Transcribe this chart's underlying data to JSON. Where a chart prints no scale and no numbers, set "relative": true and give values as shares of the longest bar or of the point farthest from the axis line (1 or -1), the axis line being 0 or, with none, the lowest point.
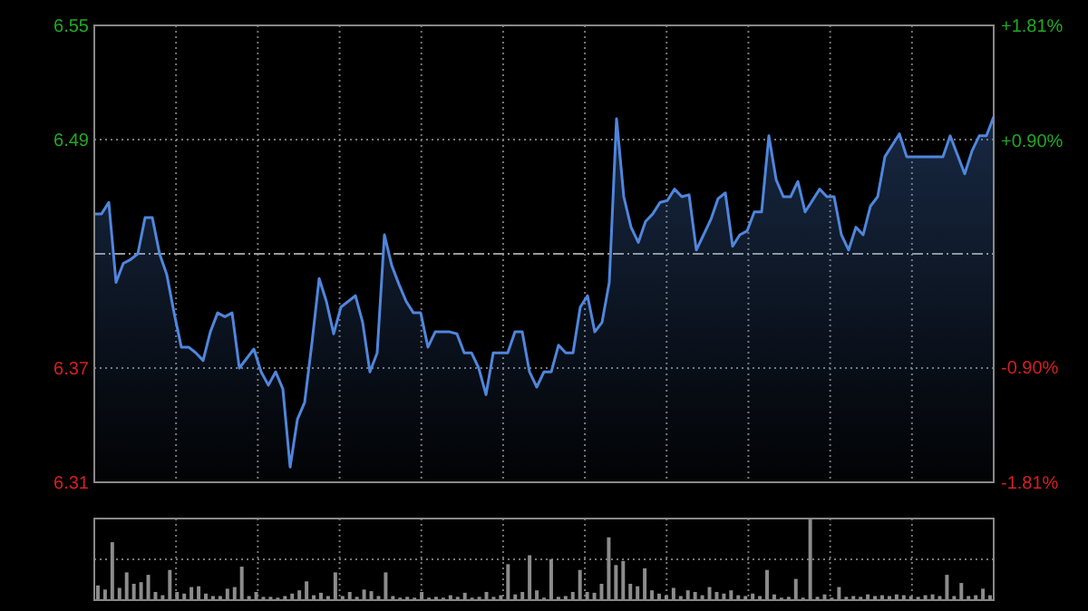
{
  "chart_data": [
    {
      "type": "area",
      "categories": [
        null,
        null,
        null,
        null,
        null,
        null,
        null,
        null,
        null,
        null,
        null,
        null,
        null,
        null,
        null,
        null,
        null,
        null,
        null,
        null,
        null,
        null,
        null,
        null,
        null,
        null,
        null,
        null,
        null,
        null,
        null,
        null,
        null,
        null,
        null,
        null,
        null,
        null,
        null,
        null,
        null,
        null,
        null,
        null,
        null,
        null,
        null,
        null,
        null,
        null,
        null,
        null,
        null,
        null,
        null,
        null,
        null,
        null,
        null,
        null,
        null,
        null,
        null,
        null,
        null,
        null,
        null,
        null,
        null,
        null,
        null,
        null,
        null,
        null,
        null,
        null,
        null,
        null,
        null,
        null,
        null,
        null,
        null,
        null,
        null,
        null,
        null,
        null,
        null,
        null,
        null,
        null,
        null,
        null,
        null,
        null,
        null,
        null,
        null,
        null,
        null,
        null,
        null,
        null,
        null,
        null,
        null,
        null,
        null,
        null,
        null,
        null,
        null,
        null,
        null,
        null,
        null,
        null,
        null,
        null,
        null,
        null,
        null,
        null,
        null
      ],
      "series": [
        {
          "color": "#4f86dc",
          "values": [
            6.451,
            6.451,
            6.457,
            6.415,
            6.425,
            6.427,
            6.43,
            6.449,
            6.449,
            6.43,
            6.419,
            6.399,
            6.381,
            6.381,
            6.378,
            6.374,
            6.389,
            6.399,
            6.397,
            6.399,
            6.37,
            6.375,
            6.38,
            6.368,
            6.361,
            6.368,
            6.359,
            6.318,
            6.343,
            6.352,
            6.383,
            6.417,
            6.405,
            6.388,
            6.402,
            6.405,
            6.408,
            6.394,
            6.368,
            6.378,
            6.44,
            6.424,
            6.414,
            6.405,
            6.399,
            6.399,
            6.381,
            6.389,
            6.389,
            6.389,
            6.388,
            6.378,
            6.378,
            6.37,
            6.356,
            6.378,
            6.378,
            6.378,
            6.389,
            6.389,
            6.368,
            6.36,
            6.368,
            6.368,
            6.382,
            6.378,
            6.378,
            6.402,
            6.408,
            6.389,
            6.394,
            6.415,
            6.501,
            6.46,
            6.444,
            6.436,
            6.447,
            6.451,
            6.457,
            6.458,
            6.464,
            6.46,
            6.461,
            6.432,
            6.44,
            6.448,
            6.459,
            6.462,
            6.434,
            6.44,
            6.442,
            6.452,
            6.452,
            6.492,
            6.469,
            6.46,
            6.46,
            6.468,
            6.452,
            6.458,
            6.464,
            6.46,
            6.46,
            6.44,
            6.432,
            6.444,
            6.44,
            6.455,
            6.46,
            6.481,
            6.487,
            6.493,
            6.481,
            6.481,
            6.481,
            6.481,
            6.481,
            6.481,
            6.492,
            6.482,
            6.472,
            6.484,
            6.492,
            6.492,
            6.502
          ]
        }
      ],
      "ylim": [
        6.31,
        6.55
      ],
      "yticks": [
        6.31,
        6.37,
        6.49,
        6.55
      ],
      "y2lim": [
        -1.81,
        1.81
      ],
      "y2ticks": [
        {
          "value": -1.81,
          "label": "-1.81%"
        },
        {
          "value": -0.9,
          "label": "-0.90%"
        },
        {
          "value": 0.9,
          "label": "+0.90%"
        },
        {
          "value": 1.81,
          "label": "+1.81%"
        }
      ],
      "ref_lines": [
        {
          "axis": "y",
          "value": 6.43,
          "line_style": "dashed"
        }
      ],
      "grid": true,
      "tick_labels": "y"
    },
    {
      "type": "bar",
      "relative": true,
      "color": "#8c8c8c",
      "grid": true,
      "categories": [
        null,
        null,
        null,
        null,
        null,
        null,
        null,
        null,
        null,
        null,
        null,
        null,
        null,
        null,
        null,
        null,
        null,
        null,
        null,
        null,
        null,
        null,
        null,
        null,
        null,
        null,
        null,
        null,
        null,
        null,
        null,
        null,
        null,
        null,
        null,
        null,
        null,
        null,
        null,
        null,
        null,
        null,
        null,
        null,
        null,
        null,
        null,
        null,
        null,
        null,
        null,
        null,
        null,
        null,
        null,
        null,
        null,
        null,
        null,
        null,
        null,
        null,
        null,
        null,
        null,
        null,
        null,
        null,
        null,
        null,
        null,
        null,
        null,
        null,
        null,
        null,
        null,
        null,
        null,
        null,
        null,
        null,
        null,
        null,
        null,
        null,
        null,
        null,
        null,
        null,
        null,
        null,
        null,
        null,
        null,
        null,
        null,
        null,
        null,
        null,
        null,
        null,
        null,
        null,
        null,
        null,
        null,
        null,
        null,
        null,
        null,
        null,
        null,
        null,
        null,
        null,
        null,
        null,
        null,
        null,
        null,
        null,
        null,
        null,
        null
      ],
      "values": [
        0.18,
        0.13,
        0.71,
        0.15,
        0.34,
        0.2,
        0.22,
        0.31,
        0.1,
        0.06,
        0.37,
        0.1,
        0.08,
        0.16,
        0.17,
        0.08,
        0.05,
        0.05,
        0.14,
        0.16,
        0.41,
        0.05,
        0.1,
        0.04,
        0.04,
        0.03,
        0.05,
        0.08,
        0.12,
        0.23,
        0.06,
        0.09,
        0.05,
        0.34,
        0.05,
        0.1,
        0.04,
        0.13,
        0.11,
        0.05,
        0.34,
        0.05,
        0.03,
        0.04,
        0.03,
        0.1,
        0.03,
        0.04,
        0.03,
        0.06,
        0.04,
        0.09,
        0.03,
        0.04,
        0.1,
        0.04,
        0.06,
        0.44,
        0.07,
        0.1,
        0.55,
        0.12,
        0.03,
        0.5,
        0.04,
        0.05,
        0.1,
        0.37,
        0.1,
        0.09,
        0.2,
        0.77,
        0.43,
        0.48,
        0.2,
        0.17,
        0.39,
        0.12,
        0.08,
        0.06,
        0.15,
        0.05,
        0.12,
        0.1,
        0.06,
        0.16,
        0.1,
        0.08,
        0.12,
        0.06,
        0.05,
        0.08,
        0.05,
        0.37,
        0.07,
        0.03,
        0.04,
        0.26,
        0.03,
        1,
        0.04,
        0.07,
        0.03,
        0.16,
        0.04,
        0.05,
        0.04,
        0.07,
        0.05,
        0.06,
        0.05,
        0.07,
        0.06,
        0.05,
        0.04,
        0.06,
        0.07,
        0.05,
        0.31,
        0.05,
        0.21,
        0.05,
        0.06,
        0.14,
        0.06
      ]
    }
  ]
}
